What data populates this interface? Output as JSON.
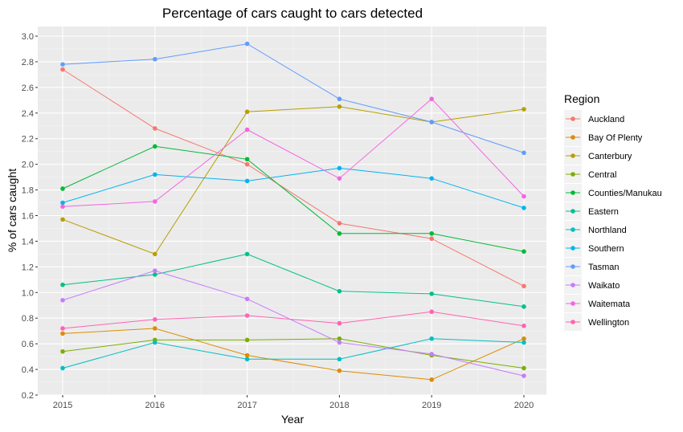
{
  "chart_data": {
    "type": "line",
    "title": "Percentage of cars caught to cars detected",
    "xlabel": "Year",
    "ylabel": "% of cars caught",
    "x": [
      "2015",
      "2016",
      "2017",
      "2018",
      "2019",
      "2020"
    ],
    "yticks": [
      "0.2",
      "0.4",
      "0.6",
      "0.8",
      "1.0",
      "1.2",
      "1.4",
      "1.6",
      "1.8",
      "2.0",
      "2.2",
      "2.4",
      "2.6",
      "2.8",
      "3.0"
    ],
    "ylim": [
      0.2,
      3.0
    ],
    "grid": true,
    "legend": {
      "title": "Region",
      "position": "right"
    },
    "series": [
      {
        "name": "Auckland",
        "color": "#F8766D",
        "values": [
          2.74,
          2.28,
          2.0,
          1.54,
          1.42,
          1.05
        ]
      },
      {
        "name": "Bay Of Plenty",
        "color": "#DE8C00",
        "values": [
          0.68,
          0.72,
          0.51,
          0.39,
          0.32,
          0.64
        ]
      },
      {
        "name": "Canterbury",
        "color": "#B79F00",
        "values": [
          1.57,
          1.3,
          2.41,
          2.45,
          2.33,
          2.43
        ]
      },
      {
        "name": "Central",
        "color": "#7CAE00",
        "values": [
          0.54,
          0.63,
          0.63,
          0.64,
          0.51,
          0.41
        ]
      },
      {
        "name": "Counties/Manukau",
        "color": "#00BA38",
        "values": [
          1.81,
          2.14,
          2.04,
          1.46,
          1.46,
          1.32
        ]
      },
      {
        "name": "Eastern",
        "color": "#00C08B",
        "values": [
          1.06,
          1.14,
          1.3,
          1.01,
          0.99,
          0.89
        ]
      },
      {
        "name": "Northland",
        "color": "#00BFC4",
        "values": [
          0.41,
          0.61,
          0.48,
          0.48,
          0.64,
          0.61
        ]
      },
      {
        "name": "Southern",
        "color": "#00B4F0",
        "values": [
          1.7,
          1.92,
          1.87,
          1.97,
          1.89,
          1.66
        ]
      },
      {
        "name": "Tasman",
        "color": "#619CFF",
        "values": [
          2.78,
          2.82,
          2.94,
          2.51,
          2.33,
          2.09
        ]
      },
      {
        "name": "Waikato",
        "color": "#C77CFF",
        "values": [
          0.94,
          1.17,
          0.95,
          0.61,
          0.52,
          0.35
        ]
      },
      {
        "name": "Waitemata",
        "color": "#F564E3",
        "values": [
          1.67,
          1.71,
          2.27,
          1.89,
          2.51,
          1.75
        ]
      },
      {
        "name": "Wellington",
        "color": "#FF64B0",
        "values": [
          0.72,
          0.79,
          0.82,
          0.76,
          0.85,
          0.74
        ]
      }
    ]
  }
}
